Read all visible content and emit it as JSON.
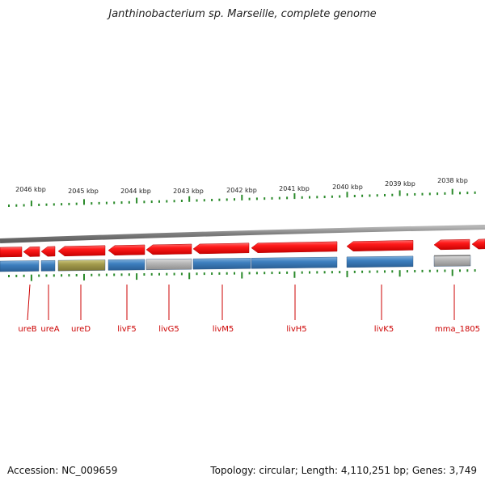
{
  "title": "Janthinobacterium sp. Marseille, complete genome",
  "footer": {
    "accession": "Accession: NC_009659",
    "topology": "Topology: circular; Length: 4,110,251 bp; Genes: 3,749"
  },
  "colors": {
    "cds_red": "#ff1a1a",
    "gene_blue": "#3d7fbf",
    "gene_olive": "#a39b4c",
    "gene_gray": "#b7b7b7",
    "backbone": "#8a8a8a",
    "tick_green": "#2a8a2a",
    "label_red": "#cc0000"
  },
  "scale": {
    "labels": [
      "2046 kbp",
      "2045 kbp",
      "2044 kbp",
      "2043 kbp",
      "2042 kbp",
      "2041 kbp",
      "2040 kbp",
      "2039 kbp",
      "2038 kbp"
    ]
  },
  "features": [
    {
      "name": "ureB",
      "color_key": "gene_blue"
    },
    {
      "name": "ureA",
      "color_key": "gene_blue"
    },
    {
      "name": "ureD",
      "color_key": "gene_olive"
    },
    {
      "name": "livF5",
      "color_key": "gene_blue"
    },
    {
      "name": "livG5",
      "color_key": "gene_gray"
    },
    {
      "name": "livM5",
      "color_key": "gene_blue"
    },
    {
      "name": "livH5",
      "color_key": "gene_blue"
    },
    {
      "name": "livK5",
      "color_key": "gene_blue"
    },
    {
      "name": "mma_1805",
      "color_key": "gene_gray"
    }
  ]
}
